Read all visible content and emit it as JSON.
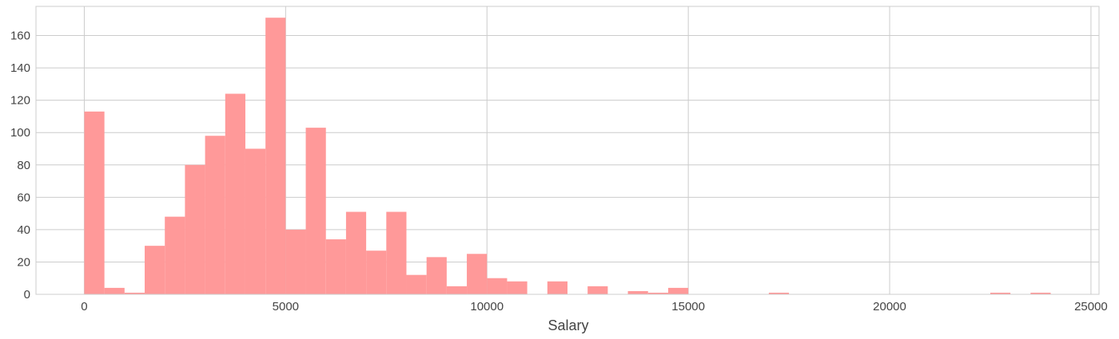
{
  "chart_data": {
    "type": "bar",
    "title": "",
    "xlabel": "Salary",
    "ylabel": "",
    "xlim": [
      -1200,
      25200
    ],
    "ylim": [
      0,
      178
    ],
    "grid": true,
    "bar_color": "#ff9999",
    "grid_color": "#cccccc",
    "xticks": [
      0,
      5000,
      10000,
      15000,
      20000,
      25000
    ],
    "yticks": [
      0,
      20,
      40,
      60,
      80,
      100,
      120,
      140,
      160
    ],
    "xtick_labels": [
      "0",
      "5000",
      "10000",
      "15000",
      "20000",
      "25000"
    ],
    "ytick_labels": [
      "0",
      "20",
      "40",
      "60",
      "80",
      "100",
      "120",
      "140",
      "160"
    ],
    "bin_start": 0,
    "bin_width": 500,
    "series": [
      {
        "values": [
          113,
          4,
          1,
          30,
          48,
          80,
          98,
          124,
          90,
          171,
          40,
          103,
          34,
          51,
          27,
          51,
          12,
          23,
          5,
          25,
          10,
          8,
          0,
          8,
          0,
          5,
          0,
          2,
          1,
          4,
          0,
          0,
          0,
          0,
          1,
          0,
          0,
          0,
          0,
          0,
          0,
          0,
          0,
          0,
          0,
          1,
          0,
          1
        ]
      }
    ]
  }
}
